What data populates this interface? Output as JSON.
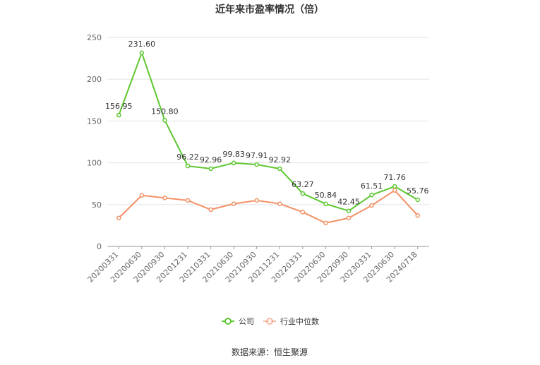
{
  "chart_data": {
    "type": "line",
    "title": "近年来市盈率情况（倍）",
    "categories": [
      "20200331",
      "20200630",
      "20200930",
      "20201231",
      "20210331",
      "20210630",
      "20210930",
      "20211231",
      "20220331",
      "20220630",
      "20220930",
      "20230331",
      "20230630",
      "20240718"
    ],
    "ylim": [
      0,
      250
    ],
    "yticks": [
      0,
      50,
      100,
      150,
      200,
      250
    ],
    "grid": true,
    "legend_position": "bottom",
    "series": [
      {
        "name": "公司",
        "color": "#5cc72e",
        "show_labels": true,
        "values": [
          156.95,
          231.6,
          150.8,
          96.22,
          92.96,
          99.83,
          97.91,
          92.92,
          63.27,
          50.84,
          42.45,
          61.51,
          71.76,
          55.76
        ],
        "labels": [
          "156.95",
          "231.60",
          "150.80",
          "96.22",
          "92.96",
          "99.83",
          "97.91",
          "92.92",
          "63.27",
          "50.84",
          "42.45",
          "61.51",
          "71.76",
          "55.76"
        ]
      },
      {
        "name": "行业中位数",
        "color": "#f39166",
        "show_labels": false,
        "values": [
          34,
          61,
          58,
          55,
          44,
          51,
          55,
          51,
          41,
          28,
          34,
          49,
          67,
          37
        ]
      }
    ]
  },
  "source_text": "数据来源：恒生聚源"
}
